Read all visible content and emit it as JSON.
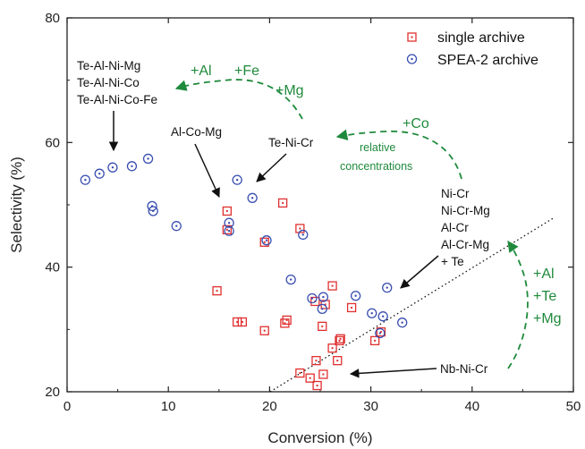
{
  "chart_data": {
    "type": "scatter",
    "title": "",
    "xlabel": "Conversion (%)",
    "ylabel": "Selectivity (%)",
    "xlim": [
      0,
      50
    ],
    "ylim": [
      20,
      80
    ],
    "xticks": [
      0,
      10,
      20,
      30,
      40,
      50
    ],
    "yticks": [
      20,
      40,
      60,
      80
    ],
    "grid": false,
    "legend_position": "top-right",
    "series": [
      {
        "name": "single archive",
        "marker": "square",
        "color": "#e03030",
        "points": [
          [
            15.8,
            49.0
          ],
          [
            21.3,
            50.3
          ],
          [
            15.8,
            46.0
          ],
          [
            19.5,
            44.0
          ],
          [
            23.0,
            46.2
          ],
          [
            14.8,
            36.2
          ],
          [
            16.8,
            31.2
          ],
          [
            17.3,
            31.2
          ],
          [
            19.5,
            29.8
          ],
          [
            21.5,
            31.0
          ],
          [
            21.7,
            31.5
          ],
          [
            26.2,
            37.0
          ],
          [
            24.5,
            34.5
          ],
          [
            25.5,
            34.0
          ],
          [
            28.1,
            33.5
          ],
          [
            25.2,
            30.5
          ],
          [
            27.0,
            28.5
          ],
          [
            26.9,
            28.2
          ],
          [
            26.2,
            27.0
          ],
          [
            30.4,
            28.2
          ],
          [
            31.0,
            29.6
          ],
          [
            24.6,
            25.0
          ],
          [
            26.7,
            25.0
          ],
          [
            23.0,
            23.0
          ],
          [
            25.3,
            22.8
          ],
          [
            24.0,
            22.2
          ],
          [
            24.7,
            21.0
          ]
        ]
      },
      {
        "name": "SPEA-2 archive",
        "marker": "circle",
        "color": "#3a4fb0",
        "points": [
          [
            1.8,
            54.0
          ],
          [
            3.2,
            55.0
          ],
          [
            4.5,
            56.0
          ],
          [
            6.4,
            56.2
          ],
          [
            8.0,
            57.4
          ],
          [
            8.4,
            49.8
          ],
          [
            8.5,
            49.0
          ],
          [
            10.8,
            46.6
          ],
          [
            16.0,
            47.1
          ],
          [
            16.0,
            45.8
          ],
          [
            16.8,
            54.0
          ],
          [
            18.3,
            51.1
          ],
          [
            19.7,
            44.3
          ],
          [
            23.3,
            45.2
          ],
          [
            22.1,
            38.0
          ],
          [
            24.2,
            35.0
          ],
          [
            25.3,
            35.2
          ],
          [
            25.2,
            33.3
          ],
          [
            28.5,
            35.4
          ],
          [
            31.6,
            36.7
          ],
          [
            30.1,
            32.6
          ],
          [
            31.2,
            32.1
          ],
          [
            33.1,
            31.1
          ],
          [
            30.9,
            29.4
          ]
        ]
      }
    ],
    "annotations": {
      "group_te_al_ni": [
        "Te-Al-Ni-Mg",
        "Te-Al-Ni-Co",
        "Te-Al-Ni-Co-Fe"
      ],
      "group_al_co_mg": "Al-Co-Mg",
      "group_te_ni_cr": "Te-Ni-Cr",
      "group_ni_cr": [
        "Ni-Cr",
        "Ni-Cr-Mg",
        "Al-Cr",
        "Al-Cr-Mg",
        "+ Te"
      ],
      "group_nb_ni_cr": "Nb-Ni-Cr",
      "green_top_left": [
        "+Al",
        "+Fe",
        "+Mg"
      ],
      "green_co": "+Co",
      "green_relative": [
        "relative",
        "concentrations"
      ],
      "green_right": [
        "+Al",
        "+Te",
        "+Mg"
      ]
    }
  }
}
